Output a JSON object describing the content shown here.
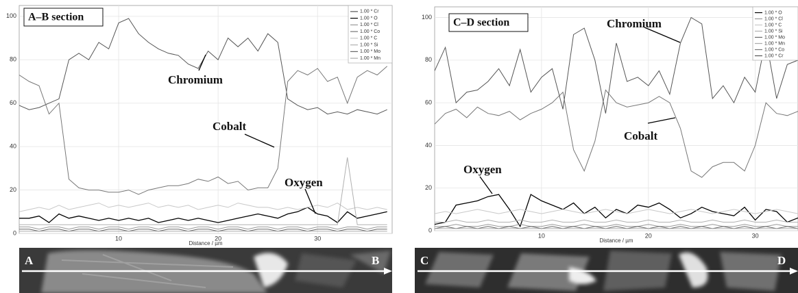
{
  "chart_data": [
    {
      "type": "line",
      "title": "A–B section",
      "x_label": "Distance / µm",
      "annotations": [
        "Chromium",
        "Cobalt",
        "Oxygen"
      ],
      "section_labels": [
        "A",
        "B"
      ],
      "xlim": [
        0,
        37.5
      ],
      "xticks": [
        10,
        20,
        30
      ],
      "ylim": [
        0,
        105
      ],
      "yticks": [
        0,
        20,
        40,
        60,
        80,
        100
      ],
      "grid": true,
      "legend": "upper right",
      "x": [
        0,
        1,
        2,
        3,
        4,
        5,
        6,
        7,
        8,
        9,
        10,
        11,
        12,
        13,
        14,
        15,
        16,
        17,
        18,
        19,
        20,
        21,
        22,
        23,
        24,
        25,
        26,
        27,
        28,
        29,
        30,
        31,
        32,
        33,
        34,
        35,
        36,
        37
      ],
      "series": [
        {
          "name": "1.00 * Cr",
          "color": "#555555",
          "values": [
            59,
            57,
            58,
            60,
            62,
            80,
            83,
            80,
            88,
            85,
            97,
            99,
            92,
            88,
            85,
            83,
            82,
            78,
            76,
            84,
            80,
            90,
            86,
            90,
            84,
            92,
            88,
            62,
            59,
            57,
            58,
            55,
            56,
            55,
            57,
            56,
            55,
            57
          ]
        },
        {
          "name": "1.00 * O",
          "color": "#000000",
          "values": [
            7,
            7,
            8,
            5,
            9,
            7,
            8,
            7,
            6,
            7,
            6,
            7,
            6,
            7,
            5,
            6,
            7,
            6,
            7,
            6,
            5,
            6,
            7,
            8,
            9,
            8,
            7,
            9,
            10,
            12,
            9,
            8,
            5,
            10,
            7,
            8,
            9,
            10
          ]
        },
        {
          "name": "1.00 * Cl",
          "color": "#999999",
          "values": [
            3,
            3,
            2,
            3,
            3,
            2,
            3,
            3,
            2,
            3,
            3,
            2,
            3,
            3,
            2,
            3,
            3,
            2,
            3,
            3,
            2,
            3,
            3,
            2,
            3,
            3,
            2,
            3,
            3,
            2,
            3,
            3,
            2,
            3,
            3,
            2,
            3,
            3
          ]
        },
        {
          "name": "1.00 * Co",
          "color": "#777777",
          "values": [
            73,
            70,
            68,
            55,
            60,
            25,
            21,
            20,
            20,
            19,
            19,
            20,
            18,
            20,
            21,
            22,
            22,
            23,
            25,
            24,
            26,
            23,
            24,
            20,
            21,
            21,
            30,
            70,
            75,
            73,
            76,
            70,
            72,
            60,
            72,
            75,
            73,
            77
          ]
        },
        {
          "name": "1.00 * C",
          "color": "#c8c8c8",
          "values": [
            10,
            11,
            12,
            11,
            13,
            11,
            12,
            13,
            14,
            12,
            13,
            12,
            13,
            14,
            12,
            13,
            12,
            13,
            11,
            12,
            13,
            12,
            14,
            13,
            12,
            12,
            11,
            12,
            11,
            12,
            13,
            12,
            14,
            11,
            12,
            11,
            12,
            11
          ]
        },
        {
          "name": "1.00 * Si",
          "color": "#b0b0b0",
          "values": [
            4,
            4,
            4,
            4,
            4,
            4,
            4,
            4,
            4,
            4,
            4,
            4,
            4,
            4,
            4,
            4,
            4,
            4,
            4,
            4,
            4,
            4,
            4,
            4,
            4,
            4,
            4,
            4,
            4,
            4,
            4,
            4,
            4,
            35,
            4,
            4,
            4,
            4
          ]
        },
        {
          "name": "1.00 * Mo",
          "color": "#666666",
          "values": [
            2,
            2,
            1,
            2,
            2,
            1,
            2,
            2,
            1,
            2,
            2,
            1,
            2,
            2,
            1,
            2,
            2,
            1,
            2,
            2,
            1,
            2,
            2,
            1,
            2,
            2,
            1,
            2,
            2,
            1,
            2,
            2,
            1,
            2,
            2,
            1,
            2,
            2
          ]
        },
        {
          "name": "1.00 * Mn",
          "color": "#aaaaaa",
          "values": [
            1,
            1,
            1,
            1,
            1,
            1,
            1,
            1,
            1,
            1,
            1,
            1,
            1,
            1,
            1,
            1,
            1,
            1,
            1,
            1,
            1,
            1,
            1,
            1,
            1,
            1,
            1,
            1,
            1,
            1,
            1,
            1,
            1,
            1,
            1,
            1,
            1,
            1
          ]
        }
      ]
    },
    {
      "type": "line",
      "title": "C–D section",
      "x_label": "Distance / µm",
      "annotations": [
        "Chromium",
        "Cobalt",
        "Oxygen"
      ],
      "section_labels": [
        "C",
        "D"
      ],
      "xlim": [
        0,
        34
      ],
      "xticks": [
        10,
        20,
        30
      ],
      "ylim": [
        0,
        105
      ],
      "yticks": [
        0,
        20,
        40,
        60,
        80,
        100
      ],
      "grid": true,
      "legend": "upper right",
      "x": [
        0,
        1,
        2,
        3,
        4,
        5,
        6,
        7,
        8,
        9,
        10,
        11,
        12,
        13,
        14,
        15,
        16,
        17,
        18,
        19,
        20,
        21,
        22,
        23,
        24,
        25,
        26,
        27,
        28,
        29,
        30,
        31,
        32,
        33,
        34
      ],
      "series": [
        {
          "name": "1.00 * O",
          "color": "#000000",
          "values": [
            3,
            4,
            12,
            13,
            14,
            16,
            17,
            10,
            2,
            17,
            14,
            12,
            10,
            13,
            8,
            11,
            6,
            10,
            8,
            12,
            11,
            13,
            10,
            6,
            8,
            11,
            9,
            8,
            7,
            11,
            5,
            10,
            9,
            4,
            6
          ]
        },
        {
          "name": "1.00 * Cl",
          "color": "#999999",
          "values": [
            2,
            2,
            3,
            2,
            2,
            3,
            2,
            2,
            3,
            2,
            2,
            3,
            2,
            2,
            3,
            2,
            2,
            3,
            2,
            2,
            3,
            2,
            2,
            3,
            2,
            2,
            3,
            2,
            2,
            3,
            2,
            2,
            3,
            2,
            2
          ]
        },
        {
          "name": "1.00 * C",
          "color": "#c8c8c8",
          "values": [
            8,
            9,
            8,
            9,
            10,
            9,
            8,
            9,
            10,
            9,
            8,
            9,
            10,
            9,
            8,
            9,
            10,
            9,
            8,
            9,
            10,
            9,
            8,
            9,
            10,
            9,
            8,
            9,
            10,
            9,
            8,
            9,
            10,
            9,
            8
          ]
        },
        {
          "name": "1.00 * Si",
          "color": "#b0b0b0",
          "values": [
            4,
            4,
            5,
            4,
            4,
            5,
            4,
            4,
            5,
            4,
            4,
            5,
            4,
            4,
            5,
            4,
            4,
            5,
            4,
            4,
            5,
            4,
            4,
            5,
            4,
            4,
            5,
            4,
            4,
            5,
            4,
            4,
            5,
            4,
            4
          ]
        },
        {
          "name": "1.00 * Mo",
          "color": "#666666",
          "values": [
            1,
            2,
            1,
            2,
            1,
            2,
            1,
            2,
            1,
            2,
            1,
            2,
            1,
            2,
            1,
            2,
            1,
            2,
            1,
            2,
            1,
            2,
            1,
            2,
            1,
            2,
            1,
            2,
            1,
            2,
            1,
            2,
            1,
            2,
            1
          ]
        },
        {
          "name": "1.00 * Mn",
          "color": "#aaaaaa",
          "values": [
            1,
            1,
            1,
            1,
            1,
            1,
            1,
            1,
            1,
            1,
            1,
            1,
            1,
            1,
            1,
            1,
            1,
            1,
            1,
            1,
            1,
            1,
            1,
            1,
            1,
            1,
            1,
            1,
            1,
            1,
            1,
            1,
            1,
            1,
            1
          ]
        },
        {
          "name": "1.00 * Co",
          "color": "#777777",
          "values": [
            50,
            55,
            57,
            53,
            58,
            55,
            54,
            56,
            52,
            55,
            57,
            60,
            65,
            38,
            28,
            42,
            66,
            60,
            58,
            59,
            60,
            63,
            60,
            48,
            28,
            25,
            30,
            32,
            32,
            28,
            40,
            60,
            55,
            54,
            56
          ]
        },
        {
          "name": "1.00 * Cr",
          "color": "#555555",
          "values": [
            75,
            86,
            60,
            65,
            66,
            70,
            76,
            68,
            85,
            65,
            72,
            76,
            57,
            92,
            95,
            80,
            55,
            88,
            70,
            72,
            68,
            75,
            64,
            88,
            100,
            97,
            62,
            68,
            60,
            72,
            65,
            90,
            62,
            78,
            80
          ]
        }
      ]
    }
  ]
}
